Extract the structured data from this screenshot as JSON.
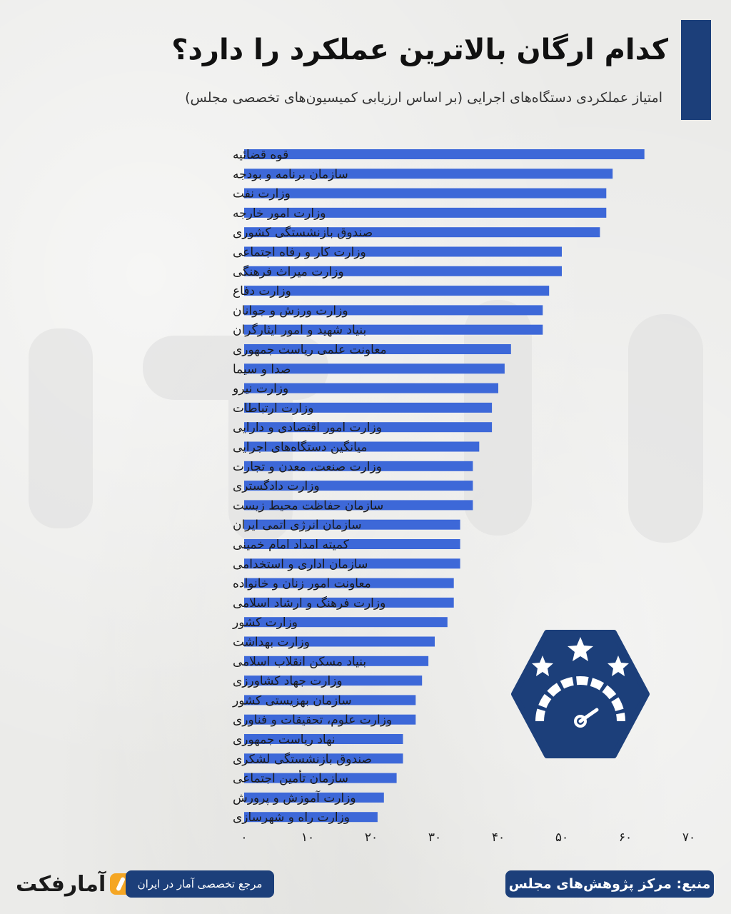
{
  "title": "کدام ارگان بالاترین عملکرد را دارد؟",
  "subtitle": "امتیاز عملکردی دستگاه‌های اجرایی (بر اساس ارزیابی کمیسیون‌های تخصصی مجلس)",
  "footer": {
    "logo_text": "آمارفکت",
    "tagline": "مرجع تخصصی آمار در ایران",
    "source": "منبع: مرکز پژوهش‌های مجلس"
  },
  "badge": {
    "icon": "speedometer-stars-icon",
    "color": "#1c3f7a"
  },
  "colors": {
    "bar": "#3d68d8",
    "accent": "#1c3f7a",
    "logo_mark": "#f5a623"
  },
  "chart_data": {
    "type": "bar",
    "orientation": "horizontal",
    "categories": [
      "قوه قضائیه",
      "سازمان برنامه و بودجه",
      "وزارت نفت",
      "وزارت امور خارجه",
      "صندوق بازنشستگی کشوری",
      "وزارت کار و رفاه اجتماعی",
      "وزارت میراث فرهنگی",
      "وزارت دفاع",
      "وزارت ورزش و جوانان",
      "بنیاد شهید و امور ایثارگران",
      "معاونت علمی ریاست جمهوری",
      "صدا و سیما",
      "وزارت نیرو",
      "وزارت ارتباطات",
      "وزارت امور اقتصادی و دارایی",
      "میانگین دستگاه‌های اجرایی",
      "وزارت صنعت، معدن و تجارت",
      "وزارت دادگستری",
      "سازمان حفاظت محیط زیست",
      "سازمان انرژی اتمی ایران",
      "کمیته امداد امام خمینی",
      "سازمان اداری و استخدامی",
      "معاونت امور زنان و خانواده",
      "وزارت فرهنگ و ارشاد اسلامی",
      "وزارت کشور",
      "وزارت بهداشت",
      "بنیاد مسکن انقلاب اسلامی",
      "وزارت جهاد کشاورزی",
      "سازمان بهزیستی کشور",
      "وزارت علوم، تحقیقات و فناوری",
      "نهاد ریاست جمهوری",
      "صندوق بازنشستگی لشکری",
      "سازمان تأمین اجتماعی",
      "وزارت آموزش و پرورش",
      "وزارت راه و شهرسازی"
    ],
    "values": [
      63,
      58,
      57,
      57,
      56,
      50,
      50,
      48,
      47,
      47,
      42,
      41,
      40,
      39,
      39,
      37,
      36,
      36,
      36,
      34,
      34,
      34,
      33,
      33,
      32,
      30,
      29,
      28,
      27,
      27,
      25,
      25,
      24,
      22,
      21
    ],
    "xlim": [
      0,
      70
    ],
    "xticks": [
      0,
      10,
      20,
      30,
      40,
      50,
      60,
      70
    ],
    "xtick_labels": [
      "۰",
      "۱۰",
      "۲۰",
      "۳۰",
      "۴۰",
      "۵۰",
      "۶۰",
      "۷۰"
    ],
    "xlabel": "",
    "ylabel": "",
    "grid": false,
    "legend": "none"
  }
}
